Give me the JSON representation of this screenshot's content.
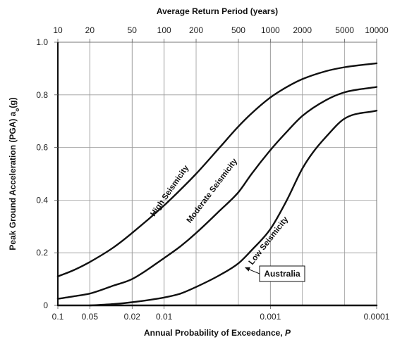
{
  "chart_data": {
    "type": "line",
    "title": "",
    "xlabel": "Annual Probability of Exceedance, P",
    "xlabel_parts": {
      "main": "Annual Probability of Exceedance, ",
      "var": "P"
    },
    "top_axis_label": "Average Return Period (years)",
    "ylabel": "Peak Ground Acceleration (PGA) a₀(g)",
    "ylabel_parts": {
      "pre": "Peak Ground Acceleration (PGA) a",
      "sub": "o",
      "post": "(g)"
    },
    "x_scale": "log",
    "x_reversed": true,
    "xlim": [
      0.1,
      0.0001
    ],
    "ylim": [
      0,
      1.0
    ],
    "grid": true,
    "bottom_ticks": [
      {
        "value": 0.1,
        "label": "0.1"
      },
      {
        "value": 0.05,
        "label": "0.05"
      },
      {
        "value": 0.02,
        "label": "0.02"
      },
      {
        "value": 0.01,
        "label": "0.01"
      },
      {
        "value": 0.001,
        "label": "0.001"
      },
      {
        "value": 0.0001,
        "label": "0.0001"
      }
    ],
    "top_ticks": [
      {
        "value": 10,
        "label": "10"
      },
      {
        "value": 20,
        "label": "20"
      },
      {
        "value": 50,
        "label": "50"
      },
      {
        "value": 100,
        "label": "100"
      },
      {
        "value": 200,
        "label": "200"
      },
      {
        "value": 500,
        "label": "500"
      },
      {
        "value": 1000,
        "label": "1000"
      },
      {
        "value": 2000,
        "label": "2000"
      },
      {
        "value": 5000,
        "label": "5000"
      },
      {
        "value": 10000,
        "label": "10000"
      }
    ],
    "y_ticks": [
      {
        "value": 0,
        "label": "0"
      },
      {
        "value": 0.2,
        "label": "0.2"
      },
      {
        "value": 0.4,
        "label": "0.4"
      },
      {
        "value": 0.6,
        "label": "0.6"
      },
      {
        "value": 0.8,
        "label": "0.8"
      },
      {
        "value": 1.0,
        "label": "1.0"
      }
    ],
    "series": [
      {
        "name": "High Seismicity",
        "points": [
          [
            0.1,
            0.11
          ],
          [
            0.07,
            0.135
          ],
          [
            0.05,
            0.165
          ],
          [
            0.03,
            0.22
          ],
          [
            0.02,
            0.275
          ],
          [
            0.01,
            0.38
          ],
          [
            0.007,
            0.44
          ],
          [
            0.005,
            0.5
          ],
          [
            0.003,
            0.6
          ],
          [
            0.002,
            0.68
          ],
          [
            0.0015,
            0.73
          ],
          [
            0.001,
            0.79
          ],
          [
            0.0007,
            0.83
          ],
          [
            0.0005,
            0.86
          ],
          [
            0.0003,
            0.89
          ],
          [
            0.0002,
            0.905
          ],
          [
            0.0001,
            0.92
          ]
        ]
      },
      {
        "name": "Moderate Seismicity",
        "points": [
          [
            0.1,
            0.025
          ],
          [
            0.07,
            0.035
          ],
          [
            0.05,
            0.045
          ],
          [
            0.03,
            0.075
          ],
          [
            0.02,
            0.1
          ],
          [
            0.01,
            0.18
          ],
          [
            0.007,
            0.225
          ],
          [
            0.005,
            0.275
          ],
          [
            0.003,
            0.36
          ],
          [
            0.002,
            0.43
          ],
          [
            0.0015,
            0.5
          ],
          [
            0.001,
            0.59
          ],
          [
            0.0007,
            0.66
          ],
          [
            0.0005,
            0.72
          ],
          [
            0.0003,
            0.78
          ],
          [
            0.0002,
            0.81
          ],
          [
            0.0001,
            0.83
          ]
        ]
      },
      {
        "name": "Low Seismicity",
        "points": [
          [
            0.05,
            0.0
          ],
          [
            0.03,
            0.005
          ],
          [
            0.02,
            0.012
          ],
          [
            0.01,
            0.03
          ],
          [
            0.007,
            0.045
          ],
          [
            0.005,
            0.07
          ],
          [
            0.003,
            0.115
          ],
          [
            0.002,
            0.16
          ],
          [
            0.0015,
            0.21
          ],
          [
            0.001,
            0.29
          ],
          [
            0.0007,
            0.4
          ],
          [
            0.0005,
            0.52
          ],
          [
            0.0004,
            0.58
          ],
          [
            0.0003,
            0.64
          ],
          [
            0.0002,
            0.71
          ],
          [
            0.0001,
            0.74
          ]
        ]
      },
      {
        "name": "Australia",
        "points": [
          [
            0.1,
            0.0
          ],
          [
            0.0001,
            0.0
          ]
        ]
      }
    ],
    "curve_labels": [
      {
        "text": "High Seismicity",
        "x": 0.0085,
        "y": 0.43,
        "angle": -55
      },
      {
        "text": "Moderate Seismicity",
        "x": 0.0034,
        "y": 0.43,
        "angle": -53
      },
      {
        "text": "Low Seismicity",
        "x": 0.001,
        "y": 0.24,
        "angle": -52
      }
    ],
    "callout": {
      "text": "Australia",
      "target_x": 0.0018,
      "target_y": 0.15
    }
  }
}
